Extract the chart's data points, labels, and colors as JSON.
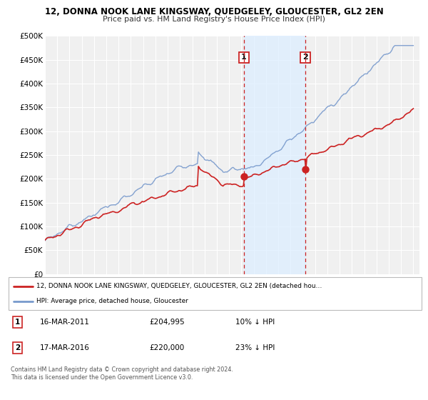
{
  "title": "12, DONNA NOOK LANE KINGSWAY, QUEDGELEY, GLOUCESTER, GL2 2EN",
  "subtitle": "Price paid vs. HM Land Registry's House Price Index (HPI)",
  "ylim": [
    0,
    500000
  ],
  "yticks": [
    0,
    50000,
    100000,
    150000,
    200000,
    250000,
    300000,
    350000,
    400000,
    450000,
    500000
  ],
  "ytick_labels": [
    "£0",
    "£50K",
    "£100K",
    "£150K",
    "£200K",
    "£250K",
    "£300K",
    "£350K",
    "£400K",
    "£450K",
    "£500K"
  ],
  "xlim_start": 1995.0,
  "xlim_end": 2025.5,
  "hpi_color": "#7799cc",
  "price_color": "#cc2222",
  "marker1_x": 2011.21,
  "marker1_y": 204995,
  "marker2_x": 2016.21,
  "marker2_y": 220000,
  "vline1_x": 2011.21,
  "vline2_x": 2016.21,
  "shade_xstart": 2011.21,
  "shade_xend": 2016.21,
  "legend_line1": "12, DONNA NOOK LANE KINGSWAY, QUEDGELEY, GLOUCESTER, GL2 2EN (detached hou…",
  "legend_line2": "HPI: Average price, detached house, Gloucester",
  "ann1_label": "1",
  "ann1_date": "16-MAR-2011",
  "ann1_price": "£204,995",
  "ann1_hpi": "10% ↓ HPI",
  "ann2_label": "2",
  "ann2_date": "17-MAR-2016",
  "ann2_price": "£220,000",
  "ann2_hpi": "23% ↓ HPI",
  "footnote1": "Contains HM Land Registry data © Crown copyright and database right 2024.",
  "footnote2": "This data is licensed under the Open Government Licence v3.0.",
  "background_color": "#ffffff",
  "plot_bg_color": "#f0f0f0",
  "grid_color": "#ffffff",
  "shade_color": "#ddeeff"
}
